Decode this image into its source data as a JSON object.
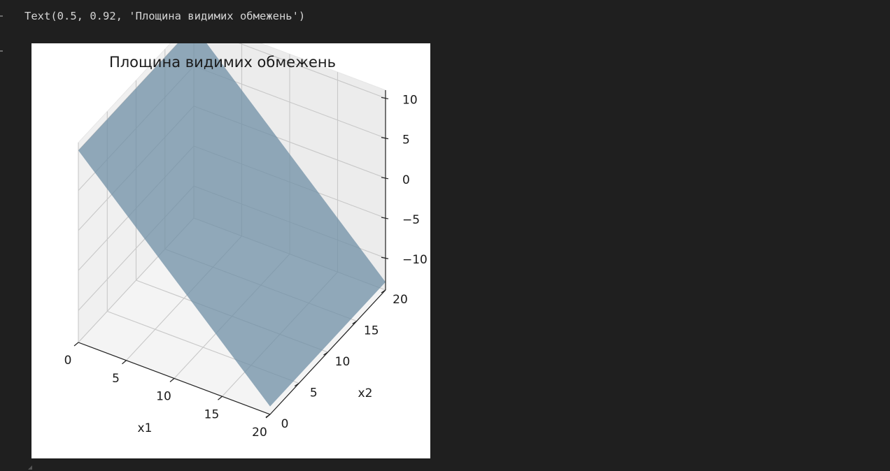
{
  "output": {
    "text_repr": "Text(0.5, 0.92, 'Площина видимих обмежень')"
  },
  "chart_data": {
    "type": "3d-surface",
    "title": "Площина видимих обмежень",
    "xlabel": "x1",
    "ylabel": "x2",
    "zlabel": "",
    "xlim": [
      0,
      20
    ],
    "ylim": [
      0,
      20
    ],
    "zlim": [
      -14,
      11
    ],
    "x_ticks": [
      0,
      5,
      10,
      15,
      20
    ],
    "y_ticks": [
      0,
      5,
      10,
      15,
      20
    ],
    "z_ticks": [
      10,
      5,
      0,
      -5,
      -10
    ],
    "x_tick_labels": [
      "0",
      "5",
      "10",
      "15",
      "20"
    ],
    "y_tick_labels": [
      "0",
      "5",
      "10",
      "15",
      "20"
    ],
    "z_tick_labels": [
      "10",
      "5",
      "0",
      "−5",
      "−10"
    ],
    "grid": true,
    "surface": {
      "corners": [
        {
          "x": 0,
          "y": 0,
          "z": 10
        },
        {
          "x": 0,
          "y": 20,
          "z": 10
        },
        {
          "x": 20,
          "y": 20,
          "z": -13
        },
        {
          "x": 20,
          "y": 0,
          "z": -13
        }
      ],
      "color": "#6f8fa6",
      "alpha": 0.75
    },
    "pane_color": "#f2f2f2",
    "grid_color": "#c8c8c8"
  }
}
